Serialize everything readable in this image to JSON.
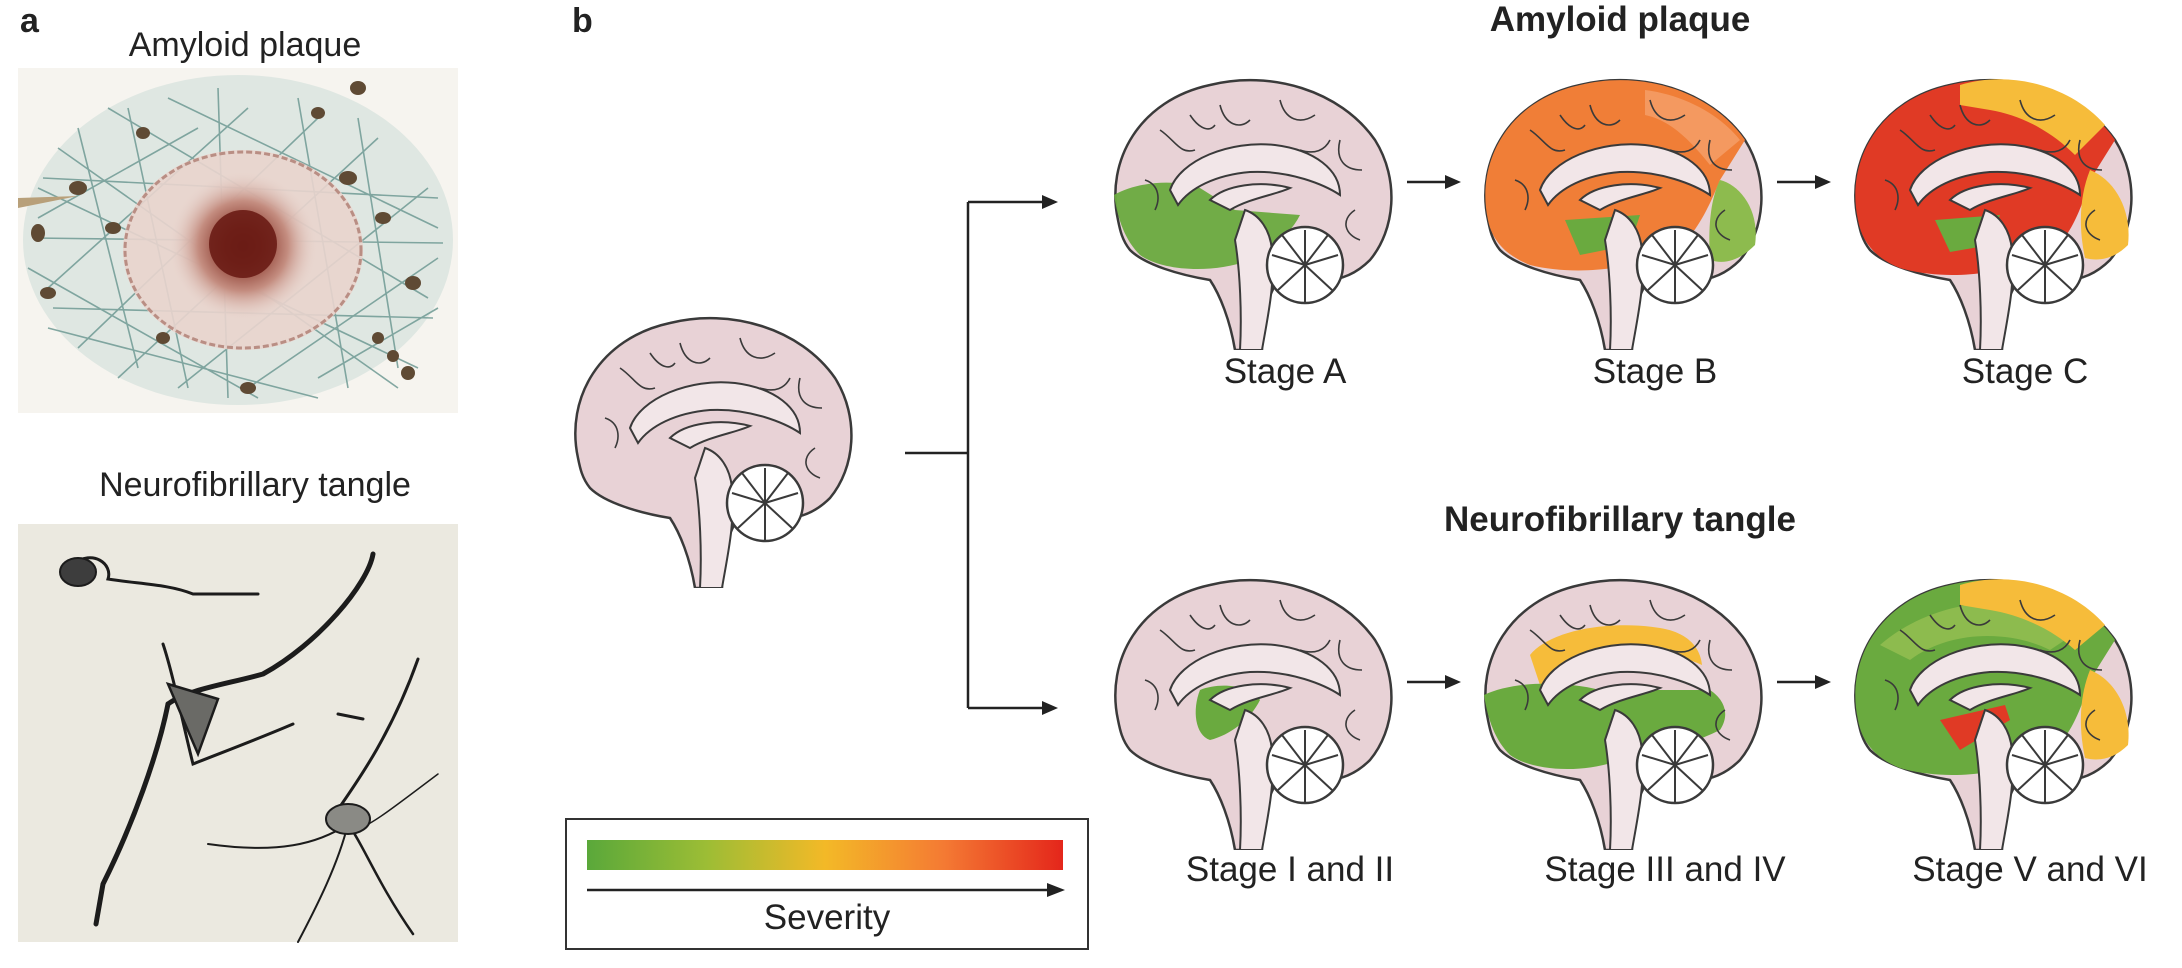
{
  "panel_a": {
    "letter": "a",
    "top_title": "Amyloid plaque",
    "bottom_title": "Neurofibrillary tangle"
  },
  "panel_b": {
    "letter": "b",
    "amyloid_title": "Amyloid plaque",
    "tangle_title": "Neurofibrillary tangle",
    "amyloid_stages": [
      "Stage A",
      "Stage B",
      "Stage C"
    ],
    "tangle_stages": [
      "Stage I and II",
      "Stage  III and IV",
      "Stage  V and VI"
    ]
  },
  "legend": {
    "label": "Severity",
    "colors": {
      "low": "#5aa83a",
      "mid": "#f3b927",
      "high": "#e4261b"
    }
  },
  "colors": {
    "brain_base": "#e8d2d6",
    "inner": "#f2e6e8",
    "green": "#6aaa3f",
    "light_green": "#8dbb4e",
    "yellow": "#f6bc3a",
    "orange": "#f07e37",
    "red": "#e03a25",
    "outline": "#3a3a3a"
  }
}
